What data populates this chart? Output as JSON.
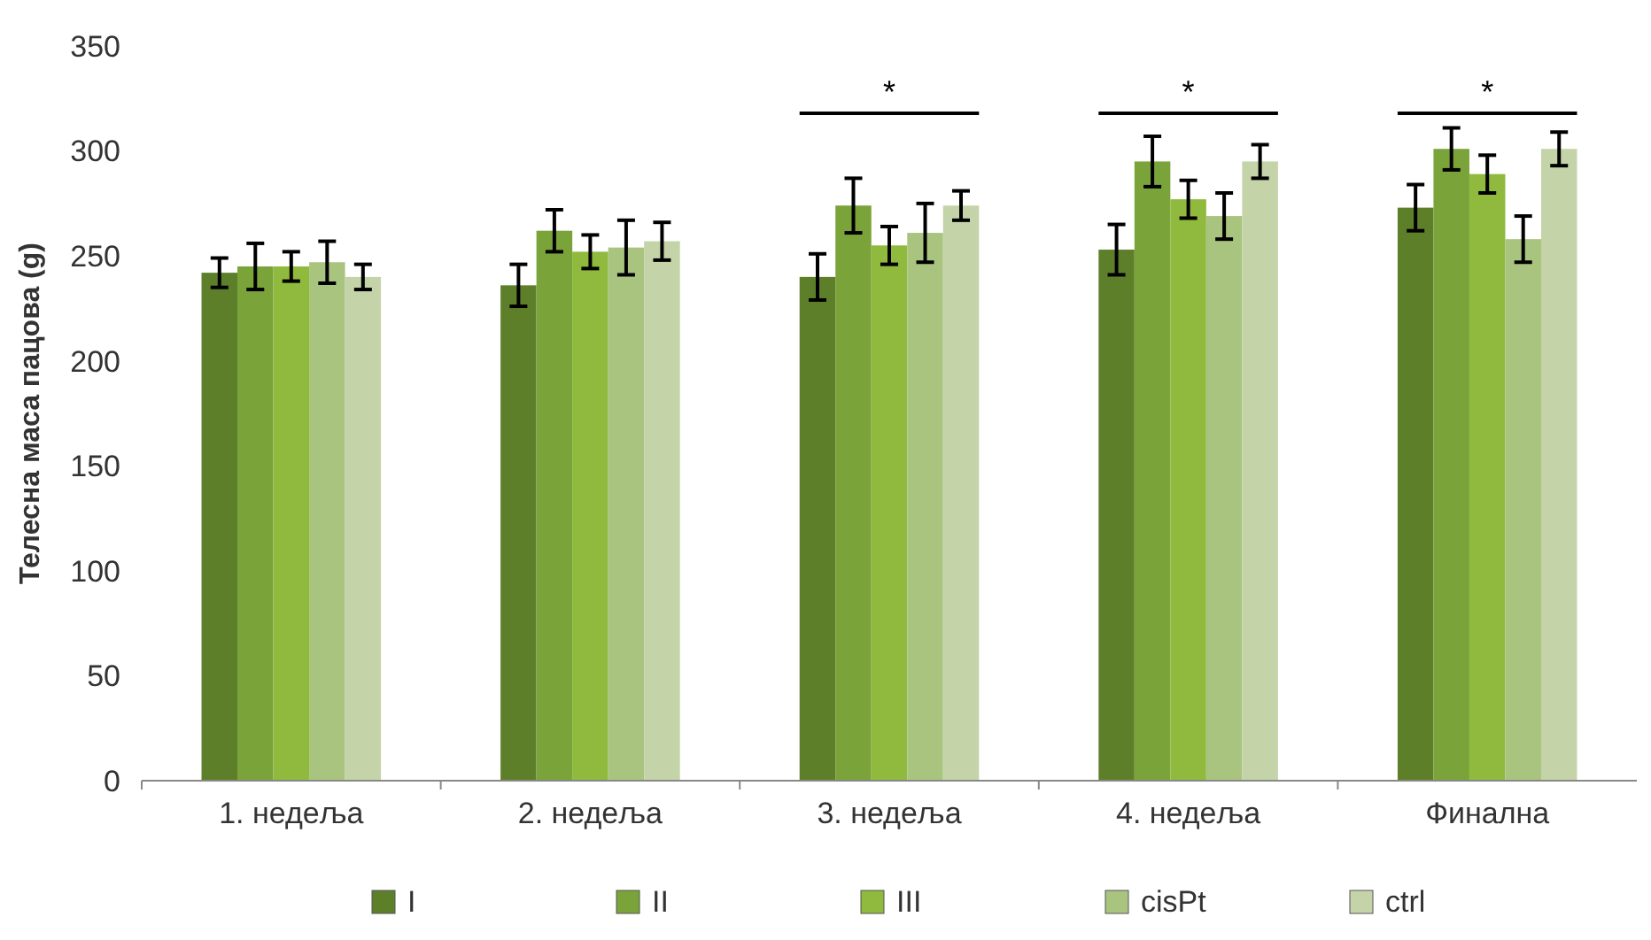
{
  "chart_data": {
    "type": "bar",
    "ylabel": "Телесна маса пацова (g)",
    "categories": [
      "1. недеља",
      "2. недеља",
      "3. недеља",
      "4. недеља",
      "Финална"
    ],
    "series": [
      {
        "name": "I",
        "color": "#5e7f2a",
        "values": [
          242,
          236,
          240,
          253,
          273
        ],
        "errors": [
          7,
          10,
          11,
          12,
          11
        ]
      },
      {
        "name": "II",
        "color": "#7aa33a",
        "values": [
          245,
          262,
          274,
          295,
          301
        ],
        "errors": [
          11,
          10,
          13,
          12,
          10
        ]
      },
      {
        "name": "III",
        "color": "#8fba3e",
        "values": [
          245,
          252,
          255,
          277,
          289
        ],
        "errors": [
          7,
          8,
          9,
          9,
          9
        ]
      },
      {
        "name": "cisPt",
        "color": "#a9c47f",
        "values": [
          247,
          254,
          261,
          269,
          258
        ],
        "errors": [
          10,
          13,
          14,
          11,
          11
        ]
      },
      {
        "name": "ctrl",
        "color": "#c4d4a8",
        "values": [
          240,
          257,
          274,
          295,
          301
        ],
        "errors": [
          6,
          9,
          7,
          8,
          8
        ]
      }
    ],
    "ylim": [
      0,
      350
    ],
    "yticks": [
      0,
      50,
      100,
      150,
      200,
      250,
      300,
      350
    ],
    "grid": false,
    "legend": "bottom",
    "annotations": [
      "*",
      "*",
      "*"
    ]
  }
}
